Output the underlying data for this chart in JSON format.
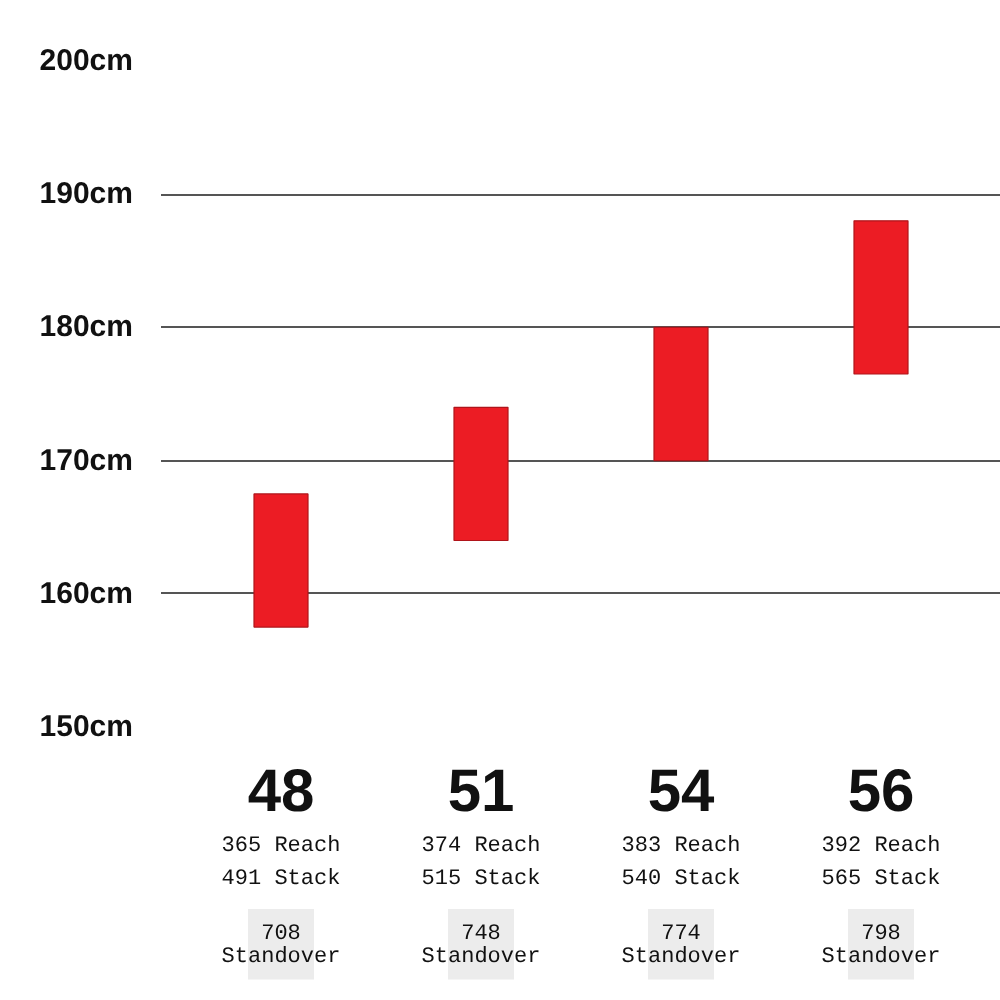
{
  "chart_data": {
    "type": "bar",
    "categories": [
      "48",
      "51",
      "54",
      "56"
    ],
    "base": [
      157.5,
      164,
      170,
      176.5
    ],
    "values": [
      10,
      10,
      10,
      11.5
    ],
    "color": "#ec1c24",
    "ylim": [
      150,
      200
    ],
    "yticks": [
      {
        "value": 150,
        "label": "150cm"
      },
      {
        "value": 160,
        "label": "160cm"
      },
      {
        "value": 170,
        "label": "170cm"
      },
      {
        "value": 180,
        "label": "180cm"
      },
      {
        "value": 190,
        "label": "190cm"
      },
      {
        "value": 200,
        "label": "200cm"
      }
    ],
    "grid": "y",
    "annotations": [
      "365 Reach\n491 Stack",
      "708\nStandover",
      "374 Reach\n515 Stack",
      "748\nStandover",
      "383 Reach\n540 Stack",
      "774\nStandover",
      "392 Reach\n565 Stack",
      "798\nStandover"
    ]
  }
}
